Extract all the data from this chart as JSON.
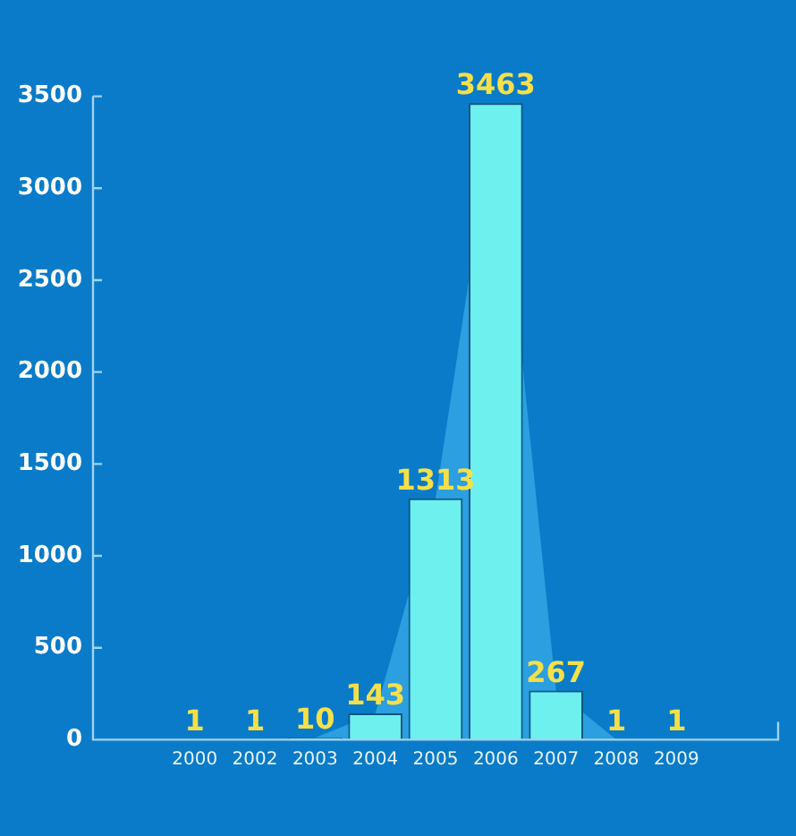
{
  "chart_data": {
    "type": "bar",
    "categories": [
      "2000",
      "2002",
      "2003",
      "2004",
      "2005",
      "2006",
      "2007",
      "2008",
      "2009"
    ],
    "series": [
      {
        "type": "area",
        "color": "#2b9fe0",
        "values": [
          1,
          1,
          10,
          143,
          1313,
          3463,
          267,
          1,
          1
        ]
      },
      {
        "color": "#6ef0ee",
        "values": [
          1,
          1,
          10,
          143,
          1313,
          3463,
          267,
          1,
          1
        ],
        "value_labels": [
          "1",
          "1",
          "10",
          "143",
          "1313",
          "3463",
          "267",
          "1",
          "1"
        ]
      }
    ],
    "ylim": [
      0,
      3500
    ],
    "yticks": [
      0,
      500,
      1000,
      1500,
      2000,
      2500,
      3000,
      3500
    ],
    "grid": false,
    "legend": false
  }
}
